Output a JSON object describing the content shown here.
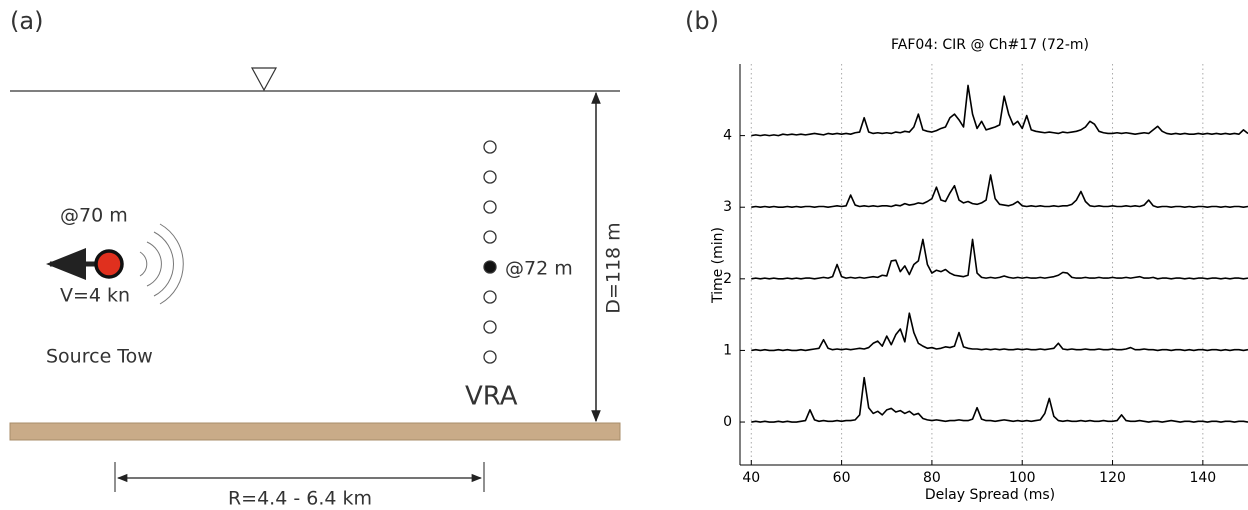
{
  "diagram": {
    "panel_label": "(a)",
    "depth": "D=118 m",
    "source_depth": "@70 m",
    "speed": "V=4 kn",
    "source": "Source Tow",
    "receiver_depth": "@72 m",
    "array": "VRA",
    "range": "R=4.4 - 6.4 km"
  },
  "chart_data": {
    "type": "line",
    "panel_label": "(b)",
    "title": "FAF04: CIR @ Ch#17 (72-m)",
    "xlabel": "Delay Spread (ms)",
    "ylabel": "Time (min)",
    "xlim": [
      37.5,
      150
    ],
    "xticks": [
      40,
      60,
      80,
      100,
      120,
      140
    ],
    "ylim": [
      -0.6,
      5
    ],
    "yticks": [
      0,
      1,
      2,
      3,
      4
    ],
    "grid": true,
    "x": [
      40,
      41,
      42,
      43,
      44,
      45,
      46,
      47,
      48,
      49,
      50,
      51,
      52,
      53,
      54,
      55,
      56,
      57,
      58,
      59,
      60,
      61,
      62,
      63,
      64,
      65,
      66,
      67,
      68,
      69,
      70,
      71,
      72,
      73,
      74,
      75,
      76,
      77,
      78,
      79,
      80,
      81,
      82,
      83,
      84,
      85,
      86,
      87,
      88,
      89,
      90,
      91,
      92,
      93,
      94,
      95,
      96,
      97,
      98,
      99,
      100,
      101,
      102,
      103,
      104,
      105,
      106,
      107,
      108,
      109,
      110,
      111,
      112,
      113,
      114,
      115,
      116,
      117,
      118,
      119,
      120,
      121,
      122,
      123,
      124,
      125,
      126,
      127,
      128,
      129,
      130,
      131,
      132,
      133,
      134,
      135,
      136,
      137,
      138,
      139,
      140,
      141,
      142,
      143,
      144,
      145,
      146,
      147,
      148,
      149,
      150
    ],
    "series": [
      {
        "color": "#000000",
        "values": [
          0,
          0.01,
          0,
          0.01,
          0,
          0,
          0.01,
          0,
          0.01,
          0,
          0,
          0.01,
          0.02,
          0.17,
          0.03,
          0.01,
          0.02,
          0.01,
          0.01,
          0.02,
          0.01,
          0.02,
          0.02,
          0.03,
          0.1,
          0.62,
          0.2,
          0.12,
          0.15,
          0.1,
          0.17,
          0.19,
          0.14,
          0.16,
          0.12,
          0.15,
          0.1,
          0.12,
          0.05,
          0.03,
          0.02,
          0.03,
          0.02,
          0.01,
          0.02,
          0.02,
          0.03,
          0.02,
          0.02,
          0.04,
          0.2,
          0.04,
          0.02,
          0.02,
          0.01,
          0.02,
          0.03,
          0.02,
          0.01,
          0.02,
          0.01,
          0.02,
          0.01,
          0.02,
          0.03,
          0.12,
          0.33,
          0.08,
          0.02,
          0.01,
          0.02,
          0.01,
          0.01,
          0.02,
          0.01,
          0.02,
          0.01,
          0.01,
          0.02,
          0.01,
          0.01,
          0.02,
          0.1,
          0.02,
          0.01,
          0.01,
          0.02,
          0.01,
          0,
          0.01,
          0.01,
          0,
          0.01,
          0.02,
          0.01,
          0,
          0.01,
          0.01,
          0,
          0.01,
          0.01,
          0,
          0.01,
          0.01,
          0,
          0.01,
          0.01,
          0,
          0.01,
          0.01,
          0
        ]
      },
      {
        "color": "#000000",
        "values": [
          1,
          1.01,
          1,
          1.01,
          1,
          1,
          1.01,
          1,
          1.01,
          1,
          1,
          1.01,
          1,
          1.01,
          1.02,
          1.03,
          1.15,
          1.03,
          1.01,
          1.02,
          1.01,
          1.02,
          1.01,
          1.02,
          1.03,
          1.02,
          1.04,
          1.1,
          1.13,
          1.06,
          1.2,
          1.08,
          1.22,
          1.3,
          1.12,
          1.52,
          1.25,
          1.1,
          1.06,
          1.03,
          1.04,
          1.02,
          1.03,
          1.05,
          1.04,
          1.06,
          1.25,
          1.05,
          1.03,
          1.02,
          1.02,
          1.01,
          1.02,
          1.01,
          1.02,
          1.01,
          1.02,
          1.01,
          1.01,
          1.02,
          1.01,
          1.02,
          1.01,
          1.01,
          1.02,
          1.01,
          1.02,
          1.03,
          1.1,
          1.02,
          1.01,
          1.02,
          1.01,
          1.01,
          1.02,
          1.01,
          1.01,
          1.02,
          1.01,
          1.01,
          1.02,
          1.01,
          1.01,
          1.02,
          1.04,
          1.01,
          1.01,
          1.02,
          1.01,
          1.01,
          1,
          1.01,
          1.01,
          1,
          1.01,
          1.01,
          1,
          1.01,
          1,
          1.01,
          1.01,
          1,
          1.01,
          1.01,
          1,
          1.01,
          1,
          1.01,
          1.01,
          1,
          1.01
        ]
      },
      {
        "color": "#000000",
        "values": [
          2,
          2.01,
          2,
          2.01,
          2,
          2.01,
          2,
          2,
          2.01,
          2,
          2.01,
          2,
          2.01,
          2.01,
          2,
          2.01,
          2.02,
          2.01,
          2.03,
          2.2,
          2.03,
          2.01,
          2.02,
          2.01,
          2.02,
          2.01,
          2.02,
          2.03,
          2.02,
          2.05,
          2.04,
          2.25,
          2.26,
          2.1,
          2.18,
          2.06,
          2.2,
          2.25,
          2.55,
          2.2,
          2.08,
          2.12,
          2.1,
          2.13,
          2.08,
          2.05,
          2.04,
          2.03,
          2.05,
          2.55,
          2.08,
          2.02,
          2.01,
          2.02,
          2.01,
          2.02,
          2.04,
          2.02,
          2.01,
          2.02,
          2.01,
          2.02,
          2.01,
          2.01,
          2.02,
          2.01,
          2.02,
          2.03,
          2.05,
          2.09,
          2.08,
          2.02,
          2.01,
          2.01,
          2.02,
          2.01,
          2.01,
          2.02,
          2.01,
          2.01,
          2.02,
          2.01,
          2.01,
          2.02,
          2.01,
          2.02,
          2.03,
          2.01,
          2.01,
          2.02,
          2,
          2.01,
          2.01,
          2,
          2.01,
          2.01,
          2,
          2.01,
          2,
          2.01,
          2.01,
          2,
          2.01,
          2.01,
          2,
          2.01,
          2,
          2.01,
          2.01,
          2,
          2.01
        ]
      },
      {
        "color": "#000000",
        "values": [
          3,
          3.01,
          3,
          3.01,
          3,
          3.01,
          3,
          3,
          3.01,
          3,
          3.01,
          3,
          3.01,
          3.01,
          3,
          3.01,
          3.01,
          3,
          3.01,
          3.02,
          3.01,
          3.02,
          3.17,
          3.03,
          3.01,
          3.02,
          3.01,
          3.02,
          3.01,
          3.02,
          3.02,
          3.01,
          3.03,
          3.02,
          3.05,
          3.03,
          3.04,
          3.06,
          3.05,
          3.08,
          3.12,
          3.28,
          3.1,
          3.08,
          3.2,
          3.3,
          3.1,
          3.06,
          3.08,
          3.05,
          3.04,
          3.06,
          3.1,
          3.45,
          3.12,
          3.04,
          3.03,
          3.02,
          3.04,
          3.08,
          3.02,
          3.01,
          3.02,
          3.01,
          3.02,
          3.01,
          3.01,
          3.02,
          3.01,
          3.02,
          3.02,
          3.04,
          3.1,
          3.22,
          3.08,
          3.02,
          3.01,
          3.02,
          3.01,
          3.01,
          3.02,
          3.01,
          3.01,
          3.02,
          3.01,
          3.02,
          3.01,
          3.03,
          3.1,
          3.02,
          3,
          3.01,
          3.01,
          3,
          3.01,
          3.01,
          3,
          3.01,
          3,
          3.01,
          3.01,
          3,
          3.01,
          3.01,
          3,
          3.01,
          3,
          3.01,
          3.01,
          3,
          3.01
        ]
      },
      {
        "color": "#000000",
        "values": [
          4,
          4.01,
          4,
          4.01,
          4,
          4.01,
          4,
          4.02,
          4.01,
          4.02,
          4.01,
          4.02,
          4.01,
          4.02,
          4.03,
          4.02,
          4.01,
          4.03,
          4.02,
          4.03,
          4.02,
          4.03,
          4.02,
          4.04,
          4.05,
          4.25,
          4.05,
          4.03,
          4.04,
          4.03,
          4.04,
          4.03,
          4.05,
          4.04,
          4.06,
          4.05,
          4.12,
          4.3,
          4.08,
          4.06,
          4.05,
          4.07,
          4.1,
          4.12,
          4.25,
          4.3,
          4.22,
          4.12,
          4.7,
          4.3,
          4.1,
          4.2,
          4.08,
          4.1,
          4.12,
          4.15,
          4.55,
          4.3,
          4.15,
          4.2,
          4.1,
          4.28,
          4.08,
          4.06,
          4.05,
          4.04,
          4.05,
          4.04,
          4.03,
          4.05,
          4.04,
          4.05,
          4.06,
          4.08,
          4.12,
          4.2,
          4.16,
          4.06,
          4.04,
          4.03,
          4.03,
          4.04,
          4.03,
          4.04,
          4.03,
          4.02,
          4.03,
          4.04,
          4.03,
          4.08,
          4.13,
          4.06,
          4.03,
          4.02,
          4.03,
          4.02,
          4.03,
          4.02,
          4.02,
          4.03,
          4.02,
          4.03,
          4.02,
          4.03,
          4.02,
          4.03,
          4.02,
          4.03,
          4.02,
          4.08,
          4.03
        ]
      }
    ]
  }
}
